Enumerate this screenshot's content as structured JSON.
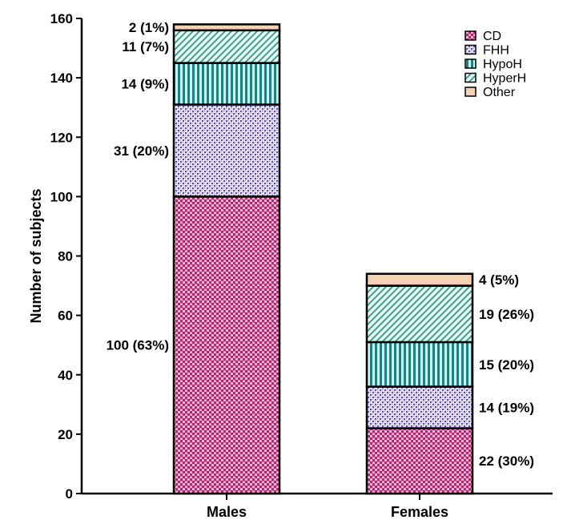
{
  "chart_data": {
    "type": "bar",
    "stacked": true,
    "title": "",
    "xlabel": "",
    "ylabel": "Number of subjects",
    "ylim": [
      0,
      160
    ],
    "yticks": [
      0,
      20,
      40,
      60,
      80,
      100,
      120,
      140,
      160
    ],
    "categories": [
      "Males",
      "Females"
    ],
    "series": [
      {
        "name": "CD",
        "values": [
          100,
          22
        ],
        "labels": [
          "100 (63%)",
          "22 (30%)"
        ]
      },
      {
        "name": "FHH",
        "values": [
          31,
          14
        ],
        "labels": [
          "31 (20%)",
          "14 (19%)"
        ]
      },
      {
        "name": "HypoH",
        "values": [
          14,
          15
        ],
        "labels": [
          "14 (9%)",
          "15 (20%)"
        ]
      },
      {
        "name": "HyperH",
        "values": [
          11,
          19
        ],
        "labels": [
          "11 (7%)",
          "19 (26%)"
        ]
      },
      {
        "name": "Other",
        "values": [
          2,
          4
        ],
        "labels": [
          "2 (1%)",
          "4 (5%)"
        ]
      }
    ],
    "label_side": [
      "left",
      "right"
    ],
    "legend_position": "top-right",
    "colors": {
      "CD": "#c0387e",
      "FHH": "#6b5bb5",
      "HypoH": "#1f8a8a",
      "HyperH": "#2aa18a",
      "Other": "#f6d2b4"
    }
  }
}
